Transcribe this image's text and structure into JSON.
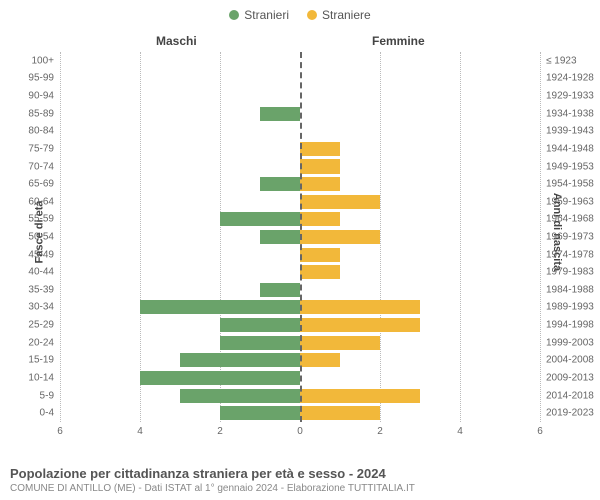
{
  "legend": {
    "male": {
      "label": "Stranieri",
      "color": "#6aa36a"
    },
    "female": {
      "label": "Straniere",
      "color": "#f2b83a"
    }
  },
  "headers": {
    "left": "Maschi",
    "right": "Femmine"
  },
  "axis_titles": {
    "left": "Fasce di età",
    "right": "Anni di nascita"
  },
  "chart": {
    "type": "population-pyramid",
    "x_max": 6,
    "x_ticks": [
      6,
      4,
      2,
      0,
      2,
      4,
      6
    ],
    "background_color": "#ffffff",
    "grid_color": "#bbbbbb",
    "bar_gap_ratio": 0.2,
    "bar_colors": {
      "male": "#6aa36a",
      "female": "#f2b83a"
    },
    "rows": [
      {
        "age": "100+",
        "birth": "≤ 1923",
        "male": 0,
        "female": 0
      },
      {
        "age": "95-99",
        "birth": "1924-1928",
        "male": 0,
        "female": 0
      },
      {
        "age": "90-94",
        "birth": "1929-1933",
        "male": 0,
        "female": 0
      },
      {
        "age": "85-89",
        "birth": "1934-1938",
        "male": 1,
        "female": 0
      },
      {
        "age": "80-84",
        "birth": "1939-1943",
        "male": 0,
        "female": 0
      },
      {
        "age": "75-79",
        "birth": "1944-1948",
        "male": 0,
        "female": 1
      },
      {
        "age": "70-74",
        "birth": "1949-1953",
        "male": 0,
        "female": 1
      },
      {
        "age": "65-69",
        "birth": "1954-1958",
        "male": 1,
        "female": 1
      },
      {
        "age": "60-64",
        "birth": "1959-1963",
        "male": 0,
        "female": 2
      },
      {
        "age": "55-59",
        "birth": "1964-1968",
        "male": 2,
        "female": 1
      },
      {
        "age": "50-54",
        "birth": "1969-1973",
        "male": 1,
        "female": 2
      },
      {
        "age": "45-49",
        "birth": "1974-1978",
        "male": 0,
        "female": 1
      },
      {
        "age": "40-44",
        "birth": "1979-1983",
        "male": 0,
        "female": 1
      },
      {
        "age": "35-39",
        "birth": "1984-1988",
        "male": 1,
        "female": 0
      },
      {
        "age": "30-34",
        "birth": "1989-1993",
        "male": 4,
        "female": 3
      },
      {
        "age": "25-29",
        "birth": "1994-1998",
        "male": 2,
        "female": 3
      },
      {
        "age": "20-24",
        "birth": "1999-2003",
        "male": 2,
        "female": 2
      },
      {
        "age": "15-19",
        "birth": "2004-2008",
        "male": 3,
        "female": 1
      },
      {
        "age": "10-14",
        "birth": "2009-2013",
        "male": 4,
        "female": 0
      },
      {
        "age": "5-9",
        "birth": "2014-2018",
        "male": 3,
        "female": 3
      },
      {
        "age": "0-4",
        "birth": "2019-2023",
        "male": 2,
        "female": 2
      }
    ]
  },
  "footer": {
    "title": "Popolazione per cittadinanza straniera per età e sesso - 2024",
    "subtitle": "COMUNE DI ANTILLO (ME) - Dati ISTAT al 1° gennaio 2024 - Elaborazione TUTTITALIA.IT"
  }
}
